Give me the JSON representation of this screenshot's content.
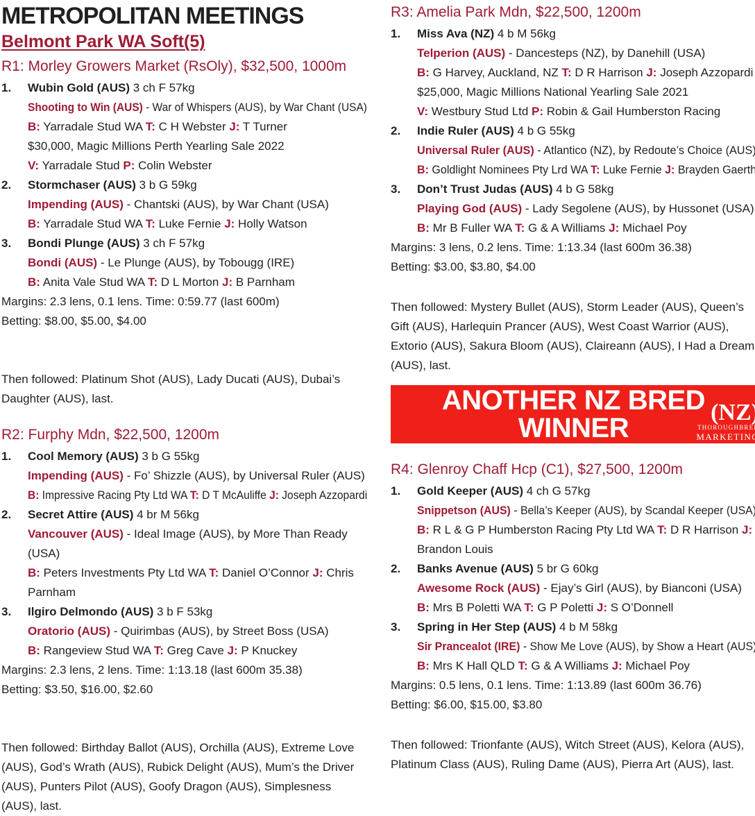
{
  "header": {
    "title": "METROPOLITAN MEETINGS",
    "meeting": "Belmont Park WA Soft(5)"
  },
  "colors": {
    "text_black": "#231f20",
    "crimson": "#9e1c35",
    "banner_red": "#ee2019",
    "banner_text": "#ffffff"
  },
  "banner": {
    "line1": "ANOTHER NZ BRED",
    "line2": "WINNER",
    "logo_main": "(NZ)",
    "logo_sub1": "THOROUGHBRED",
    "logo_sub2": "MARKETING"
  },
  "races": [
    {
      "header": "R1: Morley Growers Market (RsOly), $32,500, 1000m",
      "runners": [
        {
          "num": "1.",
          "name": "Wubin Gold (AUS)",
          "info": "3 ch F 57kg",
          "lines": [
            {
              "fit": true,
              "s": [
                {
                  "t": "Shooting to Win (AUS)",
                  "red": true
                },
                {
                  "t": " - War of Whispers (AUS), by War Chant (USA)"
                }
              ]
            },
            {
              "s": [
                {
                  "t": "B:",
                  "red": true
                },
                {
                  "t": " Yarradale Stud WA "
                },
                {
                  "t": "T:",
                  "red": true
                },
                {
                  "t": " C H Webster "
                },
                {
                  "t": "J:",
                  "red": true
                },
                {
                  "t": " T Turner"
                }
              ]
            },
            {
              "s": [
                {
                  "t": "$30,000, Magic Millions Perth Yearling Sale 2022"
                }
              ]
            },
            {
              "s": [
                {
                  "t": "V:",
                  "red": true
                },
                {
                  "t": " Yarradale Stud "
                },
                {
                  "t": "P:",
                  "red": true
                },
                {
                  "t": " Colin Webster"
                }
              ]
            }
          ]
        },
        {
          "num": "2.",
          "name": "Stormchaser (AUS)",
          "info": "3 b G 59kg",
          "lines": [
            {
              "s": [
                {
                  "t": "Impending (AUS)",
                  "red": true
                },
                {
                  "t": " - Chantski (AUS), by War Chant (USA)"
                }
              ]
            },
            {
              "s": [
                {
                  "t": "B:",
                  "red": true
                },
                {
                  "t": " Yarradale Stud WA "
                },
                {
                  "t": "T:",
                  "red": true
                },
                {
                  "t": " Luke Fernie "
                },
                {
                  "t": "J:",
                  "red": true
                },
                {
                  "t": " Holly Watson"
                }
              ]
            }
          ]
        },
        {
          "num": "3.",
          "name": "Bondi Plunge (AUS)",
          "info": "3 ch F 57kg",
          "lines": [
            {
              "s": [
                {
                  "t": "Bondi (AUS)",
                  "red": true
                },
                {
                  "t": " - Le Plunge (AUS), by Tobougg (IRE)"
                }
              ]
            },
            {
              "s": [
                {
                  "t": "B:",
                  "red": true
                },
                {
                  "t": " Anita Vale Stud WA "
                },
                {
                  "t": "T:",
                  "red": true
                },
                {
                  "t": " D L Morton "
                },
                {
                  "t": "J:",
                  "red": true
                },
                {
                  "t": " B Parnham"
                }
              ]
            }
          ]
        }
      ],
      "margins": "Margins: 2.3 lens, 0.1 lens. Time: 0:59.77 (last 600m)",
      "betting": "Betting: $8.00, $5.00, $4.00",
      "then": "Then followed: Platinum Shot (AUS), Lady Ducati (AUS), Dubai’s Daughter (AUS), last."
    },
    {
      "header": "R2: Furphy Mdn, $22,500, 1200m",
      "runners": [
        {
          "num": "1.",
          "name": "Cool Memory (AUS)",
          "info": "3 b G 55kg",
          "lines": [
            {
              "s": [
                {
                  "t": "Impending (AUS)",
                  "red": true
                },
                {
                  "t": " - Fo’ Shizzle (AUS), by Universal Ruler (AUS)"
                }
              ]
            },
            {
              "fit": true,
              "s": [
                {
                  "t": "B:",
                  "red": true
                },
                {
                  "t": " Impressive Racing Pty Ltd WA "
                },
                {
                  "t": "T:",
                  "red": true
                },
                {
                  "t": " D T McAuliffe "
                },
                {
                  "t": "J:",
                  "red": true
                },
                {
                  "t": " Joseph Azzopardi"
                }
              ]
            }
          ]
        },
        {
          "num": "2.",
          "name": "Secret Attire (AUS)",
          "info": "4 br M 56kg",
          "lines": [
            {
              "s": [
                {
                  "t": "Vancouver (AUS)",
                  "red": true
                },
                {
                  "t": " - Ideal Image (AUS), by More Than Ready (USA)"
                }
              ]
            },
            {
              "s": [
                {
                  "t": "B:",
                  "red": true
                },
                {
                  "t": " Peters Investments Pty Ltd WA "
                },
                {
                  "t": "T:",
                  "red": true
                },
                {
                  "t": " Daniel O’Connor "
                },
                {
                  "t": "J:",
                  "red": true
                },
                {
                  "t": " Chris Parnham"
                }
              ]
            }
          ]
        },
        {
          "num": "3.",
          "name": "Ilgiro Delmondo (AUS)",
          "info": "3 b F 53kg",
          "lines": [
            {
              "s": [
                {
                  "t": "Oratorio (AUS)",
                  "red": true
                },
                {
                  "t": " - Quirimbas (AUS), by Street Boss (USA)"
                }
              ]
            },
            {
              "s": [
                {
                  "t": "B:",
                  "red": true
                },
                {
                  "t": " Rangeview Stud WA "
                },
                {
                  "t": "T:",
                  "red": true
                },
                {
                  "t": " Greg Cave "
                },
                {
                  "t": "J:",
                  "red": true
                },
                {
                  "t": " P Knuckey"
                }
              ]
            }
          ]
        }
      ],
      "margins": "Margins: 2.3 lens, 2 lens. Time: 1:13.18 (last 600m 35.38)",
      "betting": "Betting: $3.50, $16.00, $2.60",
      "then": "Then followed: Birthday Ballot (AUS), Orchilla (AUS), Extreme Love (AUS), God’s Wrath (AUS), Rubick Delight (AUS), Mum’s the Driver (AUS), Punters Pilot (AUS), Goofy Dragon (AUS), Simplesness (AUS), last."
    },
    {
      "header": "R3: Amelia Park Mdn, $22,500, 1200m",
      "runners": [
        {
          "num": "1.",
          "name": "Miss Ava (NZ)",
          "info": "4 b M 56kg",
          "lines": [
            {
              "s": [
                {
                  "t": "Telperion (AUS)",
                  "red": true
                },
                {
                  "t": " - Dancesteps (NZ), by Danehill (USA)"
                }
              ]
            },
            {
              "fit": true,
              "s": [
                {
                  "t": "B:",
                  "red": true
                },
                {
                  "t": " G Harvey, Auckland, NZ "
                },
                {
                  "t": "T:",
                  "red": true
                },
                {
                  "t": " D R Harrison "
                },
                {
                  "t": "J:",
                  "red": true
                },
                {
                  "t": " Joseph Azzopardi"
                }
              ]
            },
            {
              "s": [
                {
                  "t": "$25,000, Magic Millions National Yearling Sale 2021"
                }
              ]
            },
            {
              "s": [
                {
                  "t": "V:",
                  "red": true
                },
                {
                  "t": " Westbury Stud Ltd "
                },
                {
                  "t": "P:",
                  "red": true
                },
                {
                  "t": " Robin & Gail Humberston Racing"
                }
              ]
            }
          ]
        },
        {
          "num": "2.",
          "name": "Indie Ruler (AUS)",
          "info": "4 b G 55kg",
          "lines": [
            {
              "fit": true,
              "s": [
                {
                  "t": "Universal Ruler (AUS)",
                  "red": true
                },
                {
                  "t": " - Atlantico (NZ), by Redoute’s Choice (AUS)"
                }
              ]
            },
            {
              "fit": true,
              "s": [
                {
                  "t": "B:",
                  "red": true
                },
                {
                  "t": " Goldlight Nominees Pty Lrd WA "
                },
                {
                  "t": "T:",
                  "red": true
                },
                {
                  "t": " Luke Fernie "
                },
                {
                  "t": "J:",
                  "red": true
                },
                {
                  "t": " Brayden Gaerth"
                }
              ]
            }
          ]
        },
        {
          "num": "3.",
          "name": "Don’t Trust Judas (AUS)",
          "info": "4 b G 58kg",
          "lines": [
            {
              "s": [
                {
                  "t": "Playing God (AUS)",
                  "red": true
                },
                {
                  "t": " - Lady Segolene (AUS), by Hussonet (USA)"
                }
              ]
            },
            {
              "s": [
                {
                  "t": "B:",
                  "red": true
                },
                {
                  "t": " Mr B Fuller WA "
                },
                {
                  "t": "T:",
                  "red": true
                },
                {
                  "t": " G & A Williams "
                },
                {
                  "t": "J:",
                  "red": true
                },
                {
                  "t": " Michael Poy"
                }
              ]
            }
          ]
        }
      ],
      "margins": "Margins: 3 lens, 0.2 lens. Time: 1:13.34 (last 600m 36.38)",
      "betting": "Betting: $3.00, $3.80, $4.00",
      "then": "Then followed: Mystery Bullet (AUS), Storm Leader (AUS), Queen’s Gift (AUS), Harlequin Prancer (AUS), West Coast Warrior (AUS), Extorio (AUS), Sakura Bloom (AUS), Claireann (AUS), I Had a Dream (AUS), last."
    },
    {
      "header": "R4: Glenroy Chaff Hcp (C1), $27,500, 1200m",
      "runners": [
        {
          "num": "1.",
          "name": "Gold Keeper (AUS)",
          "info": "4 ch G 57kg",
          "lines": [
            {
              "fit": true,
              "s": [
                {
                  "t": "Snippetson (AUS)",
                  "red": true
                },
                {
                  "t": " - Bella’s Keeper (AUS), by Scandal Keeper (USA)"
                }
              ]
            },
            {
              "s": [
                {
                  "t": "B:",
                  "red": true
                },
                {
                  "t": " R L & G P Humberston Racing Pty Ltd WA "
                },
                {
                  "t": "T:",
                  "red": true
                },
                {
                  "t": " D R Harrison "
                },
                {
                  "t": "J:",
                  "red": true
                },
                {
                  "t": " Brandon Louis"
                }
              ]
            }
          ]
        },
        {
          "num": "2.",
          "name": "Banks Avenue (AUS)",
          "info": "5 br G 60kg",
          "lines": [
            {
              "s": [
                {
                  "t": "Awesome Rock (AUS)",
                  "red": true
                },
                {
                  "t": " - Ejay’s Girl (AUS), by Bianconi (USA)"
                }
              ]
            },
            {
              "s": [
                {
                  "t": "B:",
                  "red": true
                },
                {
                  "t": " Mrs B Poletti WA "
                },
                {
                  "t": "T:",
                  "red": true
                },
                {
                  "t": " G P Poletti "
                },
                {
                  "t": "J:",
                  "red": true
                },
                {
                  "t": " S O’Donnell"
                }
              ]
            }
          ]
        },
        {
          "num": "3.",
          "name": "Spring in Her Step (AUS)",
          "info": "4 b M 58kg",
          "lines": [
            {
              "fit": true,
              "s": [
                {
                  "t": "Sir Prancealot (IRE)",
                  "red": true
                },
                {
                  "t": " - Show Me Love (AUS), by Show a Heart (AUS)"
                }
              ]
            },
            {
              "s": [
                {
                  "t": "B:",
                  "red": true
                },
                {
                  "t": " Mrs K Hall QLD "
                },
                {
                  "t": "T:",
                  "red": true
                },
                {
                  "t": " G & A Williams "
                },
                {
                  "t": "J:",
                  "red": true
                },
                {
                  "t": " Michael Poy"
                }
              ]
            }
          ]
        }
      ],
      "margins": "Margins: 0.5 lens, 0.1 lens. Time: 1:13.89 (last 600m 36.76)",
      "betting": "Betting: $6.00, $15.00, $3.80",
      "then": "Then followed: Trionfante (AUS), Witch Street (AUS), Kelora (AUS), Platinum Class (AUS), Ruling Dame (AUS), Pierra Art (AUS), last."
    }
  ]
}
